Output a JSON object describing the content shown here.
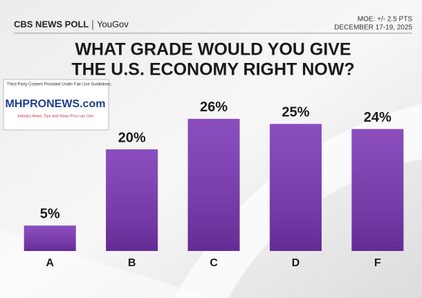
{
  "header": {
    "brand": "CBS NEWS POLL",
    "partner": "YouGov",
    "moe": "MOE: +/- 2.5 PTS",
    "dates": "DECEMBER 17-19, 2025"
  },
  "watermark": {
    "notice": "Third Party Content Provided Under Fair Use Guidelines.",
    "logo": "MHPRONEWS.com",
    "tagline": "Industry News, Tips and Views Pros can Use"
  },
  "chart_data": {
    "type": "bar",
    "title": [
      "WHAT GRADE WOULD YOU GIVE",
      "THE U.S. ECONOMY RIGHT NOW?"
    ],
    "categories": [
      "A",
      "B",
      "C",
      "D",
      "F"
    ],
    "values": [
      5,
      20,
      26,
      25,
      24
    ],
    "value_labels": [
      "5%",
      "20%",
      "26%",
      "25%",
      "24%"
    ],
    "color": "#7b35b5"
  }
}
